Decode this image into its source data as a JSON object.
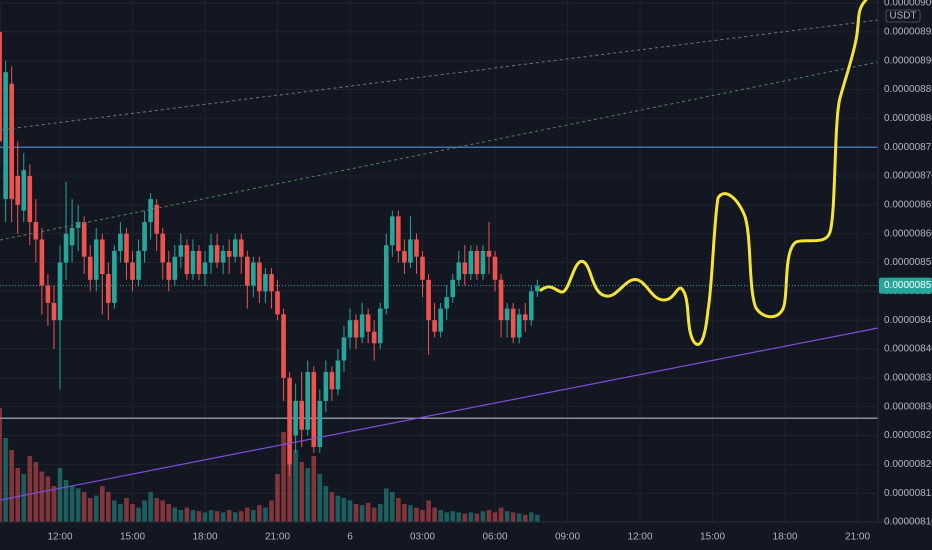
{
  "chart_data": {
    "type": "candlestick",
    "currency": "USDT",
    "ylim": [
      8.1e-06,
      9e-06
    ],
    "yticks": [
      {
        "value": 8.1e-06,
        "label": "0.00000810"
      },
      8.15e-06,
      {
        "value": 8.2e-06,
        "label": "0.00000820"
      },
      8.25e-06,
      {
        "value": 8.3e-06,
        "label": "0.00000830"
      },
      8.35e-06,
      {
        "value": 8.4e-06,
        "label": "0.00000840"
      },
      8.45e-06,
      {
        "value": 8.5e-06,
        "label": "0.00000850"
      },
      8.55e-06,
      {
        "value": 8.6e-06,
        "label": "0.00000860"
      },
      8.65e-06,
      {
        "value": 8.7e-06,
        "label": "0.00000870"
      },
      8.75e-06,
      {
        "value": 8.8e-06,
        "label": "0.00000880"
      },
      8.85e-06,
      {
        "value": 8.9e-06,
        "label": "0.00000890"
      },
      8.95e-06,
      {
        "value": 9e-06,
        "label": "0.00000900"
      }
    ],
    "grid": true,
    "up_color": "#26a69a",
    "down_color": "#ef5350",
    "last_price": 8.51e-06,
    "hlines": [
      {
        "value": 8.75e-06,
        "color": "#4a90e2"
      },
      {
        "value": 8.28e-06,
        "color": "#b2b5be"
      }
    ],
    "categories": [
      null,
      null,
      null,
      null,
      null,
      null,
      null,
      null,
      null,
      null,
      "12:00",
      null,
      null,
      null,
      null,
      null,
      null,
      null,
      null,
      null,
      null,
      null,
      "15:00",
      null,
      null,
      null,
      null,
      null,
      null,
      null,
      null,
      null,
      null,
      null,
      "18:00",
      null,
      null,
      null,
      null,
      null,
      null,
      null,
      null,
      null,
      null,
      null,
      "21:00",
      null,
      null,
      null,
      null,
      null,
      null,
      null,
      null,
      null,
      null,
      null,
      "6",
      null,
      null,
      null,
      null,
      null,
      null,
      null,
      null,
      null,
      null,
      null,
      "03:00",
      null,
      null,
      null,
      null,
      null,
      null,
      null,
      null,
      null,
      null,
      null,
      "06:00",
      null,
      null,
      null,
      null,
      null,
      null,
      null,
      null,
      null,
      null,
      null,
      "09:00",
      null,
      null,
      null,
      null,
      null,
      null,
      null,
      null,
      null,
      null,
      null,
      "12:00",
      null,
      null,
      null,
      null,
      null,
      null,
      null,
      null,
      null,
      null,
      null,
      "15:00",
      null,
      null,
      null,
      null,
      null,
      null,
      null,
      null,
      null,
      null,
      null,
      "18:00",
      null,
      null,
      null,
      null,
      null,
      null,
      null,
      null,
      null,
      null,
      null,
      "21:00",
      null,
      null,
      null
    ],
    "ohlc": [
      [
        8.95e-06,
        9e-06,
        8.72e-06,
        8.76e-06
      ],
      [
        8.66e-06,
        8.9e-06,
        8.62e-06,
        8.88e-06
      ],
      [
        8.86e-06,
        8.89e-06,
        8.62e-06,
        8.66e-06
      ],
      [
        8.7e-06,
        8.76e-06,
        8.6e-06,
        8.65e-06
      ],
      [
        8.64e-06,
        8.74e-06,
        8.62e-06,
        8.71e-06
      ],
      [
        8.7e-06,
        8.72e-06,
        8.58e-06,
        8.62e-06
      ],
      [
        8.62e-06,
        8.66e-06,
        8.55e-06,
        8.59e-06
      ],
      [
        8.59e-06,
        8.61e-06,
        8.46e-06,
        8.51e-06
      ],
      [
        8.51e-06,
        8.53e-06,
        8.44e-06,
        8.48e-06
      ],
      [
        8.48e-06,
        8.51e-06,
        8.4e-06,
        8.45e-06
      ],
      [
        8.45e-06,
        8.58e-06,
        8.33e-06,
        8.55e-06
      ],
      [
        8.55e-06,
        8.69e-06,
        8.52e-06,
        8.6e-06
      ],
      [
        8.58e-06,
        8.66e-06,
        8.55e-06,
        8.61e-06
      ],
      [
        8.61e-06,
        8.65e-06,
        8.57e-06,
        8.62e-06
      ],
      [
        8.62e-06,
        8.63e-06,
        8.53e-06,
        8.56e-06
      ],
      [
        8.56e-06,
        8.58e-06,
        8.5e-06,
        8.52e-06
      ],
      [
        8.52e-06,
        8.61e-06,
        8.5e-06,
        8.59e-06
      ],
      [
        8.59e-06,
        8.6e-06,
        8.46e-06,
        8.53e-06
      ],
      [
        8.53e-06,
        8.55e-06,
        8.45e-06,
        8.48e-06
      ],
      [
        8.48e-06,
        8.58e-06,
        8.47e-06,
        8.57e-06
      ],
      [
        8.57e-06,
        8.62e-06,
        8.55e-06,
        8.6e-06
      ],
      [
        8.6e-06,
        8.61e-06,
        8.52e-06,
        8.55e-06
      ],
      [
        8.55e-06,
        8.57e-06,
        8.5e-06,
        8.52e-06
      ],
      [
        8.52e-06,
        8.59e-06,
        8.51e-06,
        8.57e-06
      ],
      [
        8.57e-06,
        8.64e-06,
        8.55e-06,
        8.62e-06
      ],
      [
        8.62e-06,
        8.67e-06,
        8.59e-06,
        8.66e-06
      ],
      [
        8.65e-06,
        8.66e-06,
        8.57e-06,
        8.6e-06
      ],
      [
        8.6e-06,
        8.61e-06,
        8.52e-06,
        8.55e-06
      ],
      [
        8.55e-06,
        8.57e-06,
        8.5e-06,
        8.52e-06
      ],
      [
        8.52e-06,
        8.58e-06,
        8.51e-06,
        8.56e-06
      ],
      [
        8.56e-06,
        8.6e-06,
        8.54e-06,
        8.58e-06
      ],
      [
        8.58e-06,
        8.59e-06,
        8.52e-06,
        8.53e-06
      ],
      [
        8.53e-06,
        8.59e-06,
        8.52e-06,
        8.57e-06
      ],
      [
        8.57e-06,
        8.58e-06,
        8.52e-06,
        8.53e-06
      ],
      [
        8.53e-06,
        8.57e-06,
        8.51e-06,
        8.55e-06
      ],
      [
        8.55e-06,
        8.6e-06,
        8.53e-06,
        8.58e-06
      ],
      [
        8.58e-06,
        8.6e-06,
        8.54e-06,
        8.55e-06
      ],
      [
        8.55e-06,
        8.58e-06,
        8.53e-06,
        8.57e-06
      ],
      [
        8.57e-06,
        8.59e-06,
        8.53e-06,
        8.56e-06
      ],
      [
        8.56e-06,
        8.6e-06,
        8.55e-06,
        8.59e-06
      ],
      [
        8.59e-06,
        8.6e-06,
        8.53e-06,
        8.56e-06
      ],
      [
        8.56e-06,
        8.57e-06,
        8.47e-06,
        8.51e-06
      ],
      [
        8.51e-06,
        8.56e-06,
        8.49e-06,
        8.55e-06
      ],
      [
        8.55e-06,
        8.56e-06,
        8.48e-06,
        8.5e-06
      ],
      [
        8.5e-06,
        8.54e-06,
        8.48e-06,
        8.53e-06
      ],
      [
        8.53e-06,
        8.54e-06,
        8.47e-06,
        8.5e-06
      ],
      [
        8.5e-06,
        8.52e-06,
        8.45e-06,
        8.46e-06
      ],
      [
        8.46e-06,
        8.47e-06,
        8.31e-06,
        8.35e-06
      ],
      [
        8.35e-06,
        8.36e-06,
        8.18e-06,
        8.2e-06
      ],
      [
        8.25e-06,
        8.34e-06,
        8.22e-06,
        8.31e-06
      ],
      [
        8.31e-06,
        8.36e-06,
        8.23e-06,
        8.26e-06
      ],
      [
        8.26e-06,
        8.38e-06,
        8.25e-06,
        8.36e-06
      ],
      [
        8.36e-06,
        8.37e-06,
        8.22e-06,
        8.23e-06
      ],
      [
        8.23e-06,
        8.33e-06,
        8.22e-06,
        8.31e-06
      ],
      [
        8.31e-06,
        8.38e-06,
        8.29e-06,
        8.36e-06
      ],
      [
        8.36e-06,
        8.37e-06,
        8.31e-06,
        8.33e-06
      ],
      [
        8.33e-06,
        8.4e-06,
        8.32e-06,
        8.38e-06
      ],
      [
        8.38e-06,
        8.44e-06,
        8.36e-06,
        8.42e-06
      ],
      [
        8.42e-06,
        8.47e-06,
        8.4e-06,
        8.45e-06
      ],
      [
        8.45e-06,
        8.46e-06,
        8.4e-06,
        8.42e-06
      ],
      [
        8.42e-06,
        8.48e-06,
        8.41e-06,
        8.46e-06
      ],
      [
        8.46e-06,
        8.47e-06,
        8.41e-06,
        8.43e-06
      ],
      [
        8.43e-06,
        8.45e-06,
        8.38e-06,
        8.41e-06
      ],
      [
        8.41e-06,
        8.48e-06,
        8.4e-06,
        8.47e-06
      ],
      [
        8.47e-06,
        8.6e-06,
        8.46e-06,
        8.58e-06
      ],
      [
        8.58e-06,
        8.64e-06,
        8.56e-06,
        8.63e-06
      ],
      [
        8.63e-06,
        8.64e-06,
        8.55e-06,
        8.57e-06
      ],
      [
        8.57e-06,
        8.59e-06,
        8.53e-06,
        8.55e-06
      ],
      [
        8.55e-06,
        8.63e-06,
        8.54e-06,
        8.59e-06
      ],
      [
        8.59e-06,
        8.6e-06,
        8.53e-06,
        8.56e-06
      ],
      [
        8.56e-06,
        8.57e-06,
        8.49e-06,
        8.52e-06
      ],
      [
        8.52e-06,
        8.53e-06,
        8.39e-06,
        8.45e-06
      ],
      [
        8.45e-06,
        8.48e-06,
        8.42e-06,
        8.43e-06
      ],
      [
        8.43e-06,
        8.48e-06,
        8.42e-06,
        8.47e-06
      ],
      [
        8.47e-06,
        8.51e-06,
        8.45e-06,
        8.49e-06
      ],
      [
        8.49e-06,
        8.53e-06,
        8.48e-06,
        8.52e-06
      ],
      [
        8.52e-06,
        8.57e-06,
        8.51e-06,
        8.55e-06
      ],
      [
        8.55e-06,
        8.58e-06,
        8.51e-06,
        8.53e-06
      ],
      [
        8.53e-06,
        8.58e-06,
        8.52e-06,
        8.57e-06
      ],
      [
        8.57e-06,
        8.58e-06,
        8.52e-06,
        8.53e-06
      ],
      [
        8.53e-06,
        8.58e-06,
        8.52e-06,
        8.57e-06
      ],
      [
        8.57e-06,
        8.62e-06,
        8.53e-06,
        8.56e-06
      ],
      [
        8.56e-06,
        8.57e-06,
        8.5e-06,
        8.52e-06
      ],
      [
        8.52e-06,
        8.53e-06,
        8.42e-06,
        8.45e-06
      ],
      [
        8.45e-06,
        8.48e-06,
        8.42e-06,
        8.47e-06
      ],
      [
        8.47e-06,
        8.48e-06,
        8.41e-06,
        8.42e-06
      ],
      [
        8.42e-06,
        8.47e-06,
        8.41e-06,
        8.46e-06
      ],
      [
        8.46e-06,
        8.48e-06,
        8.43e-06,
        8.45e-06
      ],
      [
        8.45e-06,
        8.51e-06,
        8.44e-06,
        8.5e-06
      ],
      [
        8.5e-06,
        8.52e-06,
        8.49e-06,
        8.51e-06
      ],
      null,
      null,
      null,
      null,
      null,
      null,
      null,
      null,
      null,
      null,
      null,
      null,
      null,
      null,
      null,
      null,
      null,
      null,
      null,
      null,
      null,
      null,
      null,
      null,
      null,
      null,
      null,
      null,
      null,
      null,
      null,
      null,
      null,
      null,
      null,
      null,
      null,
      null,
      null,
      null,
      null,
      null,
      null,
      null,
      null,
      null,
      null,
      null,
      null,
      null,
      null,
      null,
      null,
      null,
      null,
      null
    ],
    "volume": [
      95,
      70,
      60,
      45,
      40,
      55,
      50,
      42,
      38,
      30,
      45,
      35,
      30,
      28,
      25,
      20,
      22,
      30,
      25,
      18,
      15,
      20,
      15,
      12,
      18,
      25,
      20,
      18,
      15,
      12,
      10,
      12,
      10,
      9,
      8,
      10,
      9,
      8,
      10,
      8,
      9,
      12,
      10,
      14,
      12,
      18,
      40,
      75,
      100,
      60,
      50,
      45,
      55,
      40,
      30,
      25,
      22,
      20,
      18,
      15,
      14,
      16,
      12,
      15,
      28,
      25,
      20,
      15,
      14,
      12,
      10,
      18,
      12,
      10,
      8,
      9,
      8,
      7,
      8,
      7,
      9,
      10,
      8,
      12,
      9,
      8,
      7,
      6,
      8,
      6,
      null,
      null,
      null,
      null,
      null,
      null,
      null,
      null,
      null,
      null,
      null,
      null,
      null,
      null,
      null,
      null,
      null,
      null,
      null,
      null,
      null,
      null,
      null,
      null,
      null,
      null,
      null,
      null,
      null,
      null,
      null,
      null,
      null,
      null,
      null,
      null,
      null,
      null,
      null,
      null,
      null,
      null,
      null,
      null,
      null,
      null,
      null,
      null,
      null,
      null,
      null,
      null,
      null,
      null,
      null,
      null
    ]
  }
}
